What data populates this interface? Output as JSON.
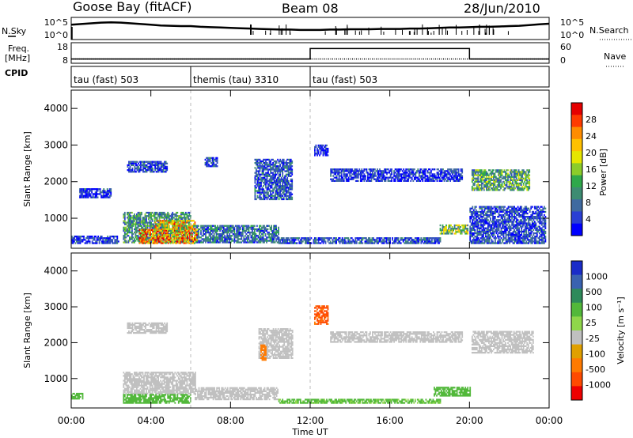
{
  "header": {
    "station": "Goose Bay (fitACF)",
    "beam": "Beam 08",
    "date": "28/Jun/2010"
  },
  "left_labels": {
    "nsky": "N.Sky",
    "freq_line1": "Freq.",
    "freq_line2": "[MHz]",
    "cpid": "CPID"
  },
  "right_labels": {
    "nsearch": "N.Search",
    "nave": "Nave"
  },
  "cpid_segments": [
    {
      "label": "tau (fast) 503",
      "start_hour": 0
    },
    {
      "label": "themis (tau) 3310",
      "start_hour": 6
    },
    {
      "label": "tau (fast) 503",
      "start_hour": 12
    }
  ],
  "chart_data": [
    {
      "type": "line",
      "name": "noise",
      "y_ticks": [
        "10^5",
        "10^0"
      ],
      "y2_ticks": [
        "10^5",
        "10^0"
      ],
      "x": [
        0,
        0.5,
        1,
        1.5,
        2,
        2.5,
        3,
        3.5,
        4,
        4.5,
        5,
        5.5,
        6,
        6.5,
        7,
        7.5,
        8,
        8.5,
        9,
        9.5,
        10,
        10.5,
        11,
        11.5,
        12,
        12.5,
        13,
        13.5,
        14,
        14.5,
        15,
        15.5,
        16,
        16.5,
        17,
        17.5,
        18,
        18.5,
        19,
        19.5,
        20,
        20.5,
        21,
        21.5,
        22,
        22.5,
        23,
        23.5,
        24
      ],
      "log_sky": [
        3.8,
        4.0,
        4.2,
        4.4,
        4.5,
        4.4,
        4.2,
        4.0,
        3.8,
        3.6,
        3.5,
        3.4,
        3.4,
        3.2,
        3.1,
        3.0,
        2.9,
        2.8,
        2.7,
        2.6,
        2.5,
        2.4,
        2.4,
        2.3,
        2.3,
        2.3,
        2.4,
        2.4,
        2.5,
        2.5,
        2.5,
        2.6,
        2.6,
        2.6,
        2.7,
        2.7,
        2.8,
        2.9,
        3.0,
        3.0,
        3.1,
        3.2,
        3.2,
        3.3,
        3.4,
        3.5,
        3.7,
        3.9,
        4.1
      ]
    },
    {
      "type": "line",
      "name": "freq_nave",
      "y_ticks": [
        18,
        8
      ],
      "y2_ticks": [
        60,
        0
      ],
      "freq_steps": [
        {
          "start": 0,
          "end": 12,
          "value": 10
        },
        {
          "start": 12,
          "end": 20,
          "value": 16
        },
        {
          "start": 20,
          "end": 24,
          "value": 10
        }
      ],
      "nave": 12
    },
    {
      "type": "heatmap",
      "name": "power",
      "ylabel": "Slant Range [km]",
      "xlabel": "",
      "yticks": [
        1000,
        2000,
        3000,
        4000
      ],
      "ylim": [
        180,
        4500
      ],
      "xlim": [
        0,
        24
      ],
      "colorbar_label": "Power [dB]",
      "colorbar_ticks": [
        28,
        24,
        20,
        16,
        12,
        8,
        4
      ],
      "colorbar_colors": [
        "#e50000",
        "#ff3a00",
        "#ff8c00",
        "#ffc000",
        "#e6e600",
        "#8ccc2a",
        "#2fa84a",
        "#3d8c72",
        "#3f6aa0",
        "#2a3fd4",
        "#0000ff"
      ],
      "regions": [
        {
          "t0": 2.6,
          "t1": 6.0,
          "r0": 320,
          "r1": 1150,
          "v": 10
        },
        {
          "t0": 6.0,
          "t1": 10.4,
          "r0": 320,
          "r1": 780,
          "v": 8
        },
        {
          "t0": 10.4,
          "t1": 18.5,
          "r0": 300,
          "r1": 460,
          "v": 6
        },
        {
          "t0": 18.5,
          "t1": 19.9,
          "r0": 560,
          "r1": 800,
          "v": 14
        },
        {
          "t0": 20.0,
          "t1": 23.8,
          "r0": 300,
          "r1": 1300,
          "v": 5
        },
        {
          "t0": 0.0,
          "t1": 2.4,
          "r0": 300,
          "r1": 520,
          "v": 4
        },
        {
          "t0": 3.4,
          "t1": 6.3,
          "r0": 300,
          "r1": 700,
          "v": 24
        },
        {
          "t0": 4.2,
          "t1": 6.2,
          "r0": 640,
          "r1": 920,
          "v": 20
        },
        {
          "t0": 9.2,
          "t1": 11.1,
          "r0": 1500,
          "r1": 2600,
          "v": 6
        },
        {
          "t0": 13.0,
          "t1": 19.6,
          "r0": 2000,
          "r1": 2350,
          "v": 4
        },
        {
          "t0": 20.1,
          "t1": 23.0,
          "r0": 1750,
          "r1": 2300,
          "v": 12
        },
        {
          "t0": 2.8,
          "t1": 4.8,
          "r0": 2250,
          "r1": 2550,
          "v": 5
        },
        {
          "t0": 0.4,
          "t1": 2.0,
          "r0": 1550,
          "r1": 1800,
          "v": 4
        },
        {
          "t0": 6.7,
          "t1": 7.3,
          "r0": 2400,
          "r1": 2650,
          "v": 5
        },
        {
          "t0": 12.2,
          "t1": 12.9,
          "r0": 2700,
          "r1": 3000,
          "v": 3
        }
      ]
    },
    {
      "type": "heatmap",
      "name": "velocity",
      "ylabel": "Slant Range [km]",
      "xlabel": "Time UT",
      "yticks": [
        1000,
        2000,
        3000,
        4000
      ],
      "ylim": [
        180,
        4500
      ],
      "xlim": [
        0,
        24
      ],
      "xticks": [
        "00:00",
        "04:00",
        "08:00",
        "12:00",
        "16:00",
        "20:00",
        "00:00"
      ],
      "colorbar_label": "Velocity [m s⁻¹]",
      "colorbar_ticks": [
        1000,
        500,
        100,
        25,
        -25,
        -100,
        -500,
        -1000
      ],
      "colorbar_colors": [
        "#1a2cc8",
        "#3a62b0",
        "#2e8a5a",
        "#52b83a",
        "#8fd64a",
        "#c0c0c0",
        "#e0a000",
        "#ff7a00",
        "#ff4a00",
        "#ee0000"
      ],
      "regions": [
        {
          "t0": 2.6,
          "t1": 6.2,
          "r0": 560,
          "r1": 1150,
          "v": 0
        },
        {
          "t0": 6.2,
          "t1": 10.4,
          "r0": 400,
          "r1": 760,
          "v": 0
        },
        {
          "t0": 2.6,
          "t1": 6.0,
          "r0": 300,
          "r1": 560,
          "v": 150
        },
        {
          "t0": 10.4,
          "t1": 18.5,
          "r0": 300,
          "r1": 420,
          "v": 120
        },
        {
          "t0": 18.2,
          "t1": 20.0,
          "r0": 500,
          "r1": 760,
          "v": 180
        },
        {
          "t0": 9.4,
          "t1": 11.1,
          "r0": 1550,
          "r1": 2400,
          "v": 0
        },
        {
          "t0": 13.0,
          "t1": 19.6,
          "r0": 2000,
          "r1": 2300,
          "v": 0
        },
        {
          "t0": 20.1,
          "t1": 23.2,
          "r0": 1700,
          "r1": 2300,
          "v": 0
        },
        {
          "t0": 2.8,
          "t1": 4.8,
          "r0": 2250,
          "r1": 2550,
          "v": 0
        },
        {
          "t0": 12.2,
          "t1": 12.9,
          "r0": 2500,
          "r1": 3000,
          "v": -600
        },
        {
          "t0": 9.5,
          "t1": 9.8,
          "r0": 1500,
          "r1": 1950,
          "v": -300
        },
        {
          "t0": 0.0,
          "t1": 0.6,
          "r0": 420,
          "r1": 560,
          "v": 150
        }
      ]
    }
  ]
}
